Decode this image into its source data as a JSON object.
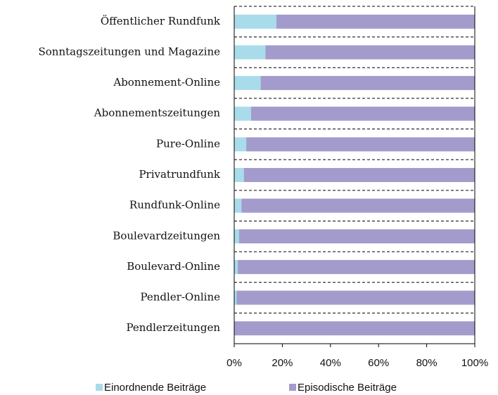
{
  "chart_data": {
    "type": "stacked_barh",
    "categories": [
      "Öffentlicher Rundfunk",
      "Sonntagszeitungen und Magazine",
      "Abonnement-Online",
      "Abonnementszeitungen",
      "Pure-Online",
      "Privatrundfunk",
      "Rundfunk-Online",
      "Boulevardzeitungen",
      "Boulevard-Online",
      "Pendler-Online",
      "Pendlerzeitungen"
    ],
    "series": [
      {
        "name": "Einordnende Beiträge",
        "color": "#a8dcea",
        "values": [
          17.5,
          13,
          11,
          7,
          5,
          4,
          3,
          2,
          1.5,
          1,
          0
        ]
      },
      {
        "name": "Episodische Beiträge",
        "color": "#a39bcb",
        "values": [
          82.5,
          87,
          89,
          93,
          95,
          96,
          97,
          98,
          98.5,
          99,
          100
        ]
      }
    ],
    "xlim": [
      0,
      100
    ],
    "xticks": [
      {
        "value": 0,
        "label": "0%"
      },
      {
        "value": 20,
        "label": "20%"
      },
      {
        "value": 40,
        "label": "40%"
      },
      {
        "value": 60,
        "label": "60%"
      },
      {
        "value": 80,
        "label": "80%"
      },
      {
        "value": 100,
        "label": "100%"
      }
    ],
    "legend": "bottom"
  }
}
